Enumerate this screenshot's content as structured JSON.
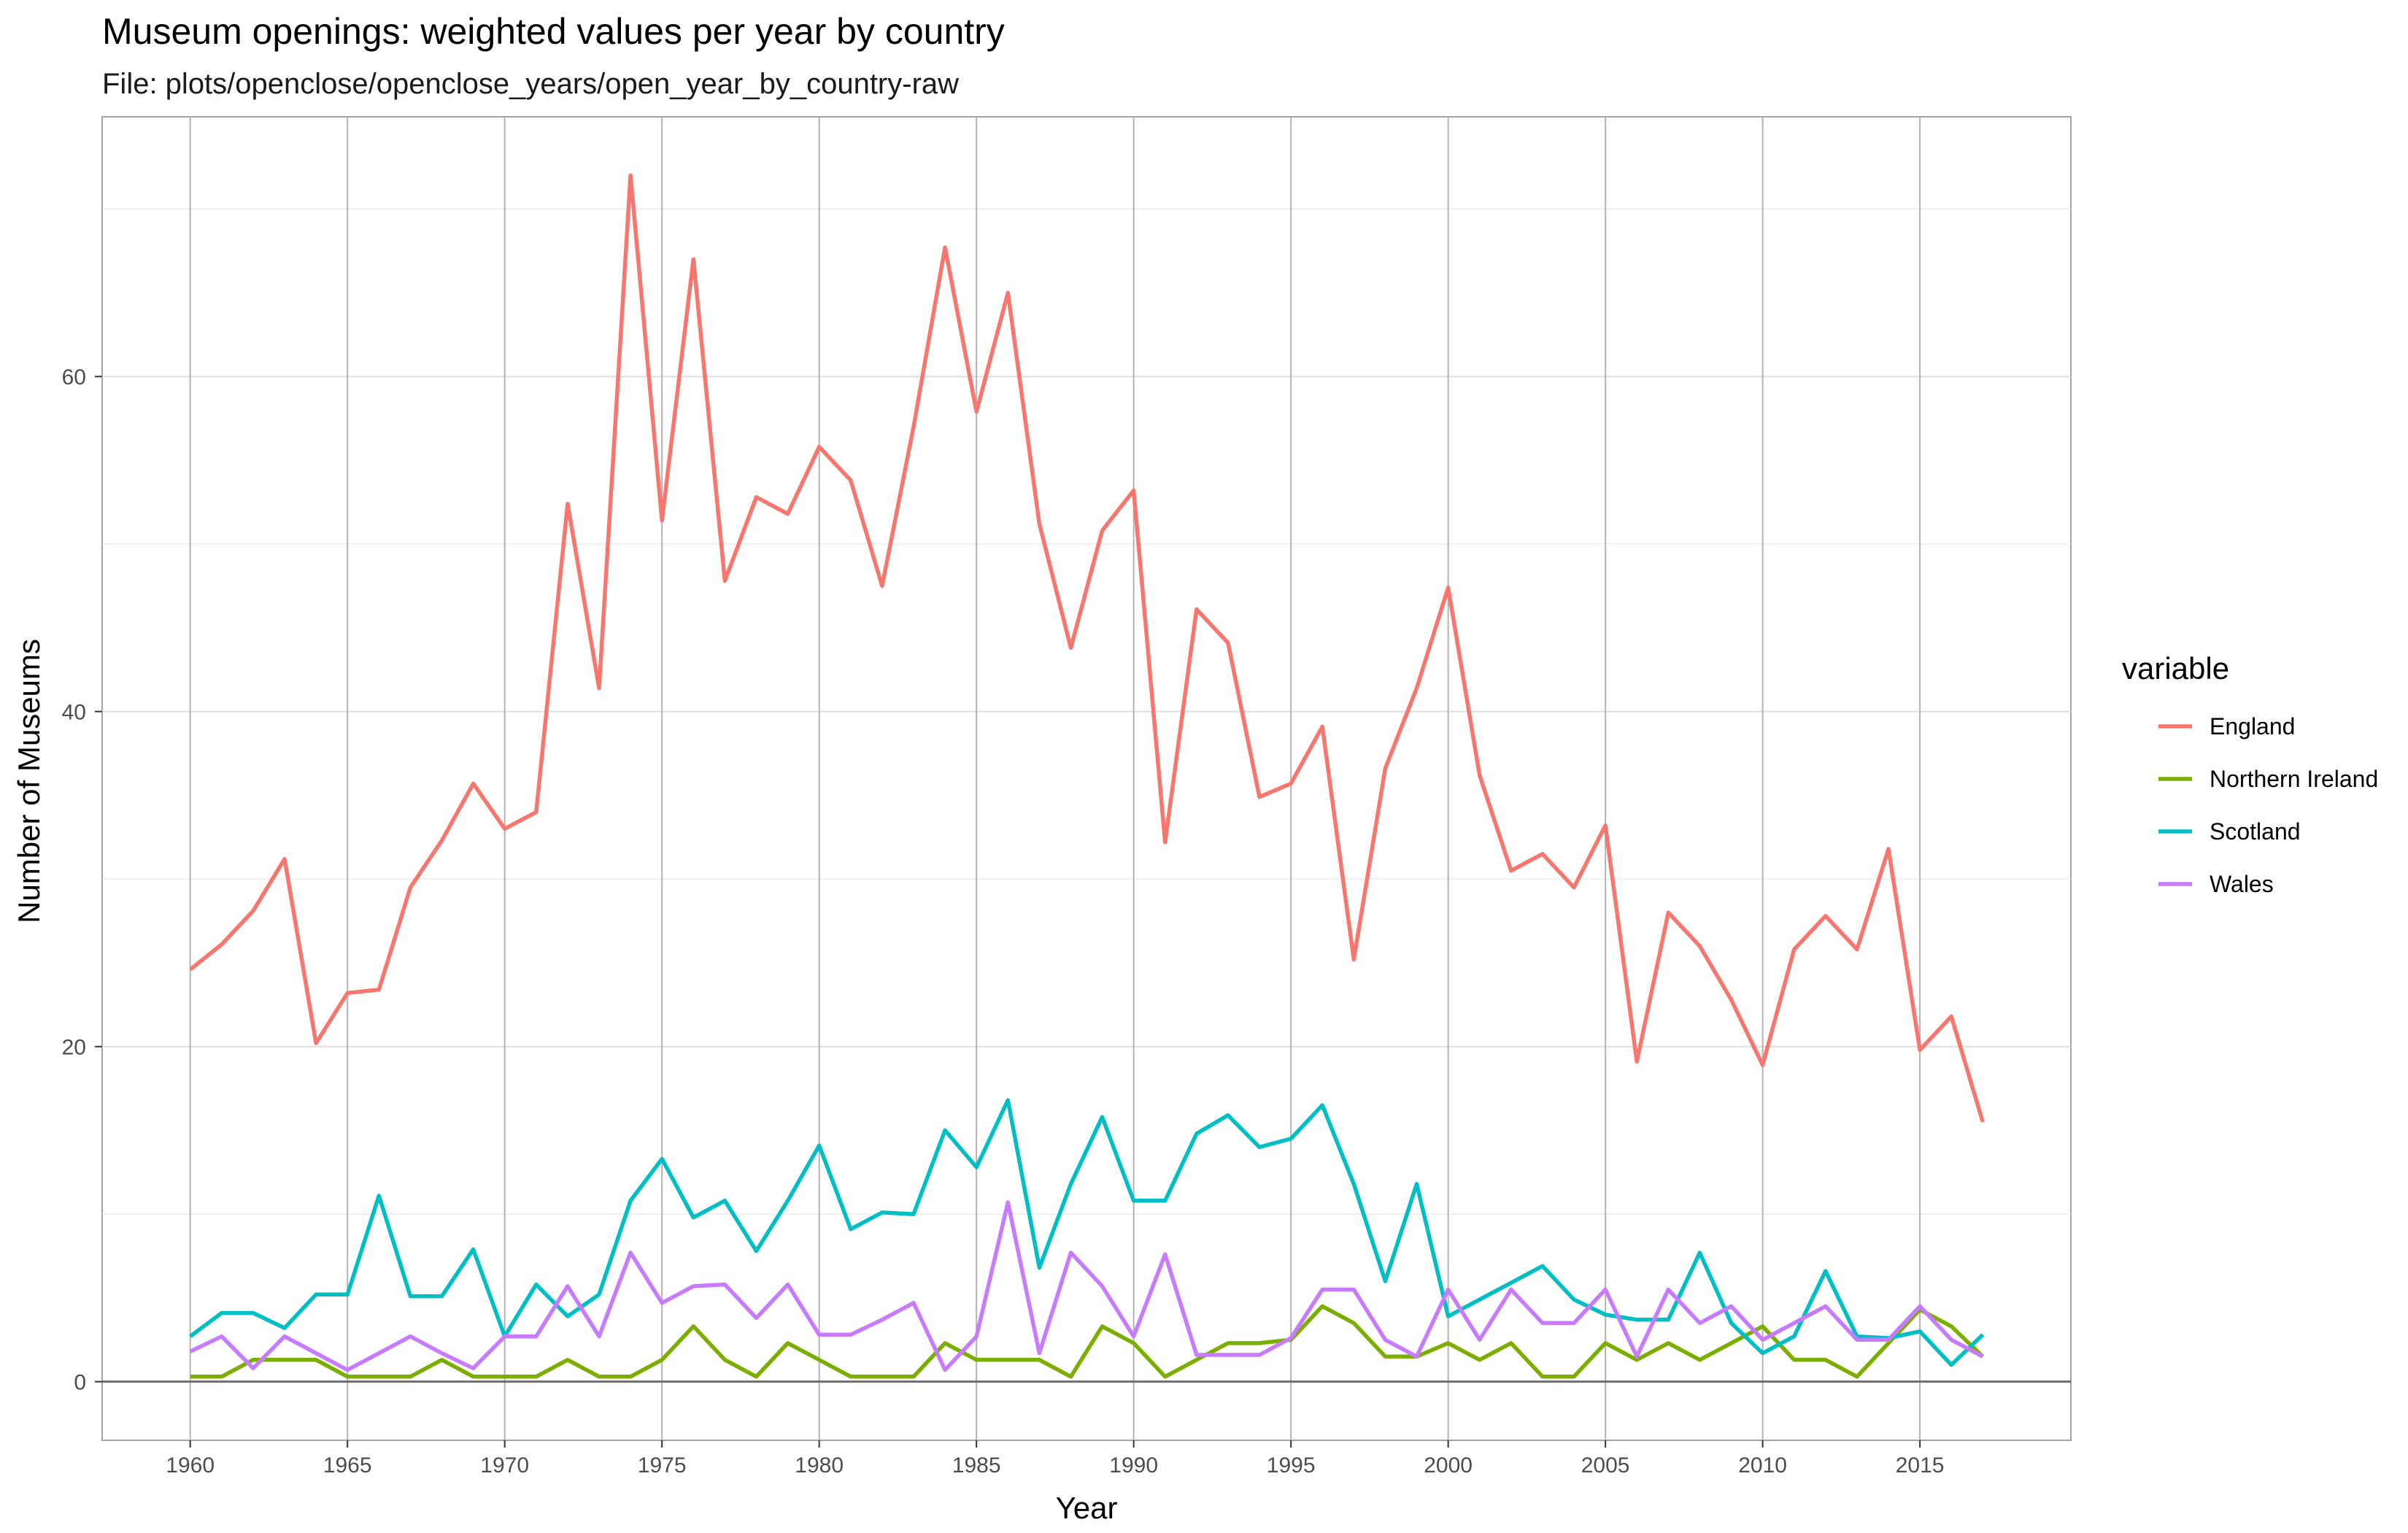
{
  "chart_data": {
    "type": "line",
    "title": "Museum openings: weighted values per year by country",
    "subtitle": "File: plots/openclose/openclose_years/open_year_by_country-raw",
    "xlabel": "Year",
    "ylabel": "Number of Museums",
    "xlim": [
      1957.2,
      2019.8
    ],
    "ylim": [
      -3.5,
      75.5
    ],
    "x_ticks": [
      1960,
      1965,
      1970,
      1975,
      1980,
      1985,
      1990,
      1995,
      2000,
      2005,
      2010,
      2015
    ],
    "x_tick_labels": [
      "1960",
      "1965",
      "1970",
      "1975",
      "1980",
      "1985",
      "1990",
      "1995",
      "2000",
      "2005",
      "2010",
      "2015"
    ],
    "y_ticks": [
      0,
      20,
      40,
      60
    ],
    "y_tick_labels": [
      "0",
      "20",
      "40",
      "60"
    ],
    "grid": true,
    "legend_title": "variable",
    "legend_position": "right",
    "x": [
      1960,
      1961,
      1962,
      1963,
      1964,
      1965,
      1966,
      1967,
      1968,
      1969,
      1970,
      1971,
      1972,
      1973,
      1974,
      1975,
      1976,
      1977,
      1978,
      1979,
      1980,
      1981,
      1982,
      1983,
      1984,
      1985,
      1986,
      1987,
      1988,
      1989,
      1990,
      1991,
      1992,
      1993,
      1994,
      1995,
      1996,
      1997,
      1998,
      1999,
      2000,
      2001,
      2002,
      2003,
      2004,
      2005,
      2006,
      2007,
      2008,
      2009,
      2010,
      2011,
      2012,
      2013,
      2014,
      2015,
      2016,
      2017
    ],
    "series": [
      {
        "name": "England",
        "color": "#f8766d",
        "values": [
          24.6,
          26.1,
          28.1,
          31.2,
          20.2,
          23.2,
          23.4,
          29.5,
          32.3,
          35.7,
          33.0,
          34.0,
          52.4,
          41.4,
          72.0,
          51.4,
          67.0,
          47.8,
          52.8,
          51.8,
          55.8,
          53.8,
          47.5,
          57.0,
          67.7,
          57.9,
          65.0,
          51.2,
          43.8,
          50.8,
          53.2,
          32.2,
          46.1,
          44.1,
          34.9,
          35.7,
          39.1,
          25.2,
          36.6,
          41.4,
          47.4,
          36.2,
          30.5,
          31.5,
          29.5,
          33.2,
          19.1,
          28.0,
          26.0,
          22.8,
          18.9,
          25.8,
          27.8,
          25.8,
          31.8,
          19.8,
          21.8,
          15.5
        ]
      },
      {
        "name": "Northern Ireland",
        "color": "#7cae00",
        "values": [
          0.3,
          0.3,
          1.3,
          1.3,
          1.3,
          0.3,
          0.3,
          0.3,
          1.3,
          0.3,
          0.3,
          0.3,
          1.3,
          0.3,
          0.3,
          1.3,
          3.3,
          1.3,
          0.3,
          2.3,
          1.3,
          0.3,
          0.3,
          0.3,
          2.3,
          1.3,
          1.3,
          1.3,
          0.3,
          3.3,
          2.3,
          0.3,
          1.3,
          2.3,
          2.3,
          2.5,
          4.5,
          3.5,
          1.5,
          1.5,
          2.3,
          1.3,
          2.3,
          0.3,
          0.3,
          2.3,
          1.3,
          2.3,
          1.3,
          2.3,
          3.3,
          1.3,
          1.3,
          0.3,
          2.3,
          4.3,
          3.3,
          1.5
        ]
      },
      {
        "name": "Scotland",
        "color": "#00bfc4",
        "values": [
          2.7,
          4.1,
          4.1,
          3.2,
          5.2,
          5.2,
          11.1,
          5.1,
          5.1,
          7.9,
          2.7,
          5.8,
          3.9,
          5.2,
          10.8,
          13.3,
          9.8,
          10.8,
          7.8,
          10.8,
          14.1,
          9.1,
          10.1,
          10.0,
          15.0,
          12.8,
          16.8,
          6.8,
          11.8,
          15.8,
          10.8,
          10.8,
          14.8,
          15.9,
          14.0,
          14.5,
          16.5,
          11.8,
          6.0,
          11.8,
          3.9,
          4.9,
          5.9,
          6.9,
          4.9,
          4.0,
          3.7,
          3.7,
          7.7,
          3.5,
          1.7,
          2.7,
          6.6,
          2.7,
          2.6,
          3.0,
          1.0,
          2.8
        ]
      },
      {
        "name": "Wales",
        "color": "#c77cff",
        "values": [
          1.8,
          2.7,
          0.8,
          2.7,
          1.7,
          0.7,
          1.7,
          2.7,
          1.7,
          0.8,
          2.7,
          2.7,
          5.7,
          2.7,
          7.7,
          4.7,
          5.7,
          5.8,
          3.8,
          5.8,
          2.8,
          2.8,
          3.7,
          4.7,
          0.7,
          2.7,
          10.7,
          1.7,
          7.7,
          5.7,
          2.7,
          7.6,
          1.6,
          1.6,
          1.6,
          2.6,
          5.5,
          5.5,
          2.5,
          1.5,
          5.5,
          2.5,
          5.5,
          3.5,
          3.5,
          5.5,
          1.5,
          5.5,
          3.5,
          4.5,
          2.5,
          3.5,
          4.5,
          2.5,
          2.5,
          4.5,
          2.5,
          1.5
        ]
      }
    ]
  }
}
